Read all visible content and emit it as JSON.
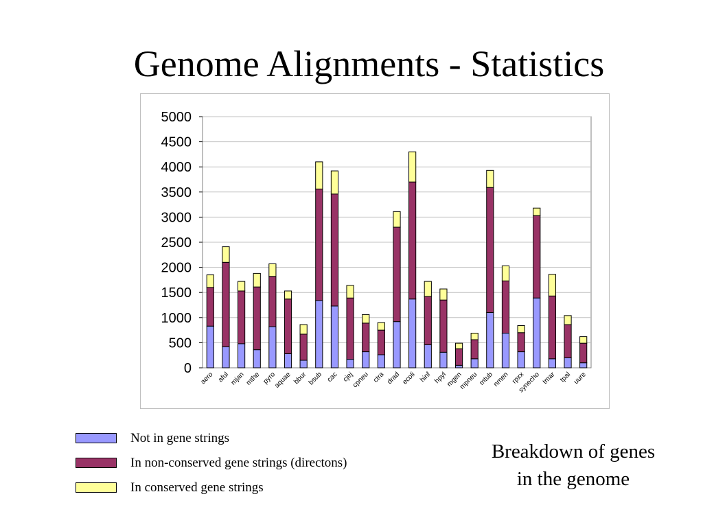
{
  "slide": {
    "title": "Genome Alignments - Statistics",
    "caption_line1": "Breakdown of genes",
    "caption_line2": "in the genome"
  },
  "chart_data": {
    "type": "bar",
    "stacked": true,
    "title": "",
    "xlabel": "",
    "ylabel": "",
    "ylim": [
      0,
      5000
    ],
    "yticks": [
      0,
      500,
      1000,
      1500,
      2000,
      2500,
      3000,
      3500,
      4000,
      4500,
      5000
    ],
    "grid": true,
    "legend_position": "bottom-left",
    "categories": [
      "aero",
      "aful",
      "mjan",
      "mthe",
      "pyro",
      "aquae",
      "bbur",
      "bsub",
      "cac",
      "cjej",
      "cpneu",
      "ctra",
      "drad",
      "ecoli",
      "hinf",
      "hpyl",
      "mgen",
      "mpneu",
      "mtub",
      "nmen",
      "rpxx",
      "synecho",
      "tmar",
      "tpal",
      "uure"
    ],
    "series": [
      {
        "name": "Not in gene strings",
        "color": "#9999ff",
        "values": [
          830,
          420,
          480,
          360,
          820,
          280,
          150,
          1340,
          1230,
          170,
          320,
          260,
          920,
          1370,
          460,
          310,
          50,
          180,
          1100,
          690,
          320,
          1390,
          180,
          200,
          100
        ]
      },
      {
        "name": "In non-conserved gene strings (directons)",
        "color": "#993366",
        "values": [
          770,
          1680,
          1050,
          1250,
          1000,
          1090,
          520,
          2220,
          2230,
          1220,
          570,
          490,
          1880,
          2330,
          960,
          1040,
          330,
          380,
          2490,
          1040,
          380,
          1640,
          1250,
          660,
          390
        ]
      },
      {
        "name": "In conserved gene strings",
        "color": "#ffff99",
        "values": [
          250,
          310,
          190,
          270,
          250,
          160,
          190,
          540,
          460,
          250,
          170,
          150,
          310,
          600,
          300,
          220,
          110,
          130,
          340,
          300,
          140,
          150,
          430,
          180,
          130
        ]
      }
    ]
  }
}
